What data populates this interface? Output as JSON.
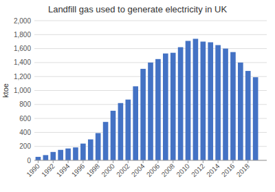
{
  "chart_data": {
    "type": "bar",
    "title": "Landfill gas used to generate electricity in UK",
    "ylabel": "ktoe",
    "x": [
      1990,
      1991,
      1992,
      1993,
      1994,
      1995,
      1996,
      1997,
      1998,
      1999,
      2000,
      2001,
      2002,
      2003,
      2004,
      2005,
      2006,
      2007,
      2008,
      2009,
      2010,
      2011,
      2012,
      2013,
      2014,
      2015,
      2016,
      2017,
      2018,
      2019
    ],
    "values": [
      50,
      75,
      120,
      150,
      170,
      185,
      240,
      300,
      390,
      550,
      710,
      820,
      870,
      1060,
      1310,
      1400,
      1450,
      1530,
      1540,
      1620,
      1710,
      1740,
      1700,
      1690,
      1650,
      1600,
      1550,
      1400,
      1280,
      1190
    ],
    "color": "#4472C4",
    "xlim": [
      1989.5,
      2020.5
    ],
    "xticks": [
      1990,
      1992,
      1994,
      1996,
      1998,
      2000,
      2002,
      2004,
      2006,
      2008,
      2010,
      2012,
      2014,
      2016,
      2018
    ],
    "ylim": [
      0,
      2000
    ],
    "yticks": [
      0,
      200,
      400,
      600,
      800,
      {
        "value": 1000,
        "label": "1,000"
      },
      {
        "value": 1200,
        "label": "1,200"
      },
      {
        "value": 1400,
        "label": "1,400"
      },
      {
        "value": 1600,
        "label": "1,600"
      },
      {
        "value": 1800,
        "label": "1,800"
      },
      {
        "value": 2000,
        "label": "2,000"
      }
    ],
    "grid": true
  }
}
